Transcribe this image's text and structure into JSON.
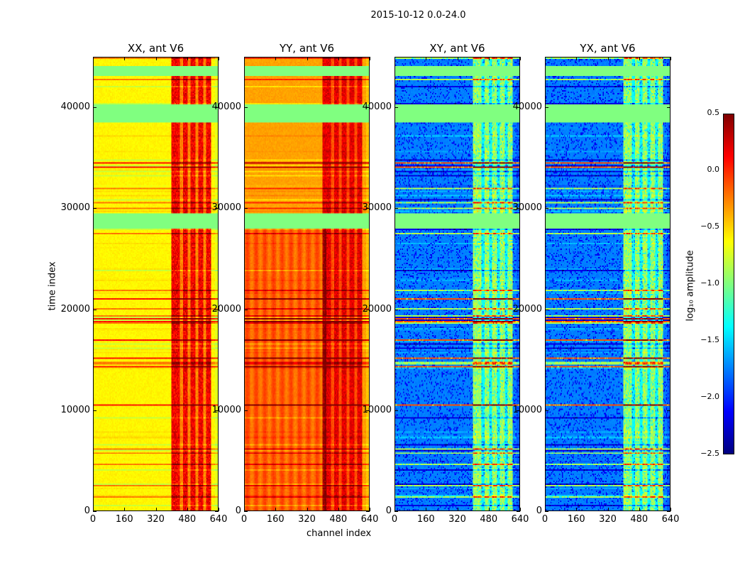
{
  "figure": {
    "suptitle": "2015-10-12 0.0-24.0"
  },
  "chart_data": {
    "type": "heatmap",
    "title": "2015-10-12 0.0-24.0",
    "xlabel": "channel index",
    "ylabel": "time index",
    "xlim": [
      0,
      640
    ],
    "ylim": [
      0,
      45000
    ],
    "xticks": [
      "0",
      "160",
      "320",
      "480",
      "640"
    ],
    "yticks": [
      "0",
      "10000",
      "20000",
      "30000",
      "40000"
    ],
    "panels": [
      {
        "title": "XX, ant V6",
        "baseline": -0.6,
        "band_level": 0.15
      },
      {
        "title": "YY, ant V6",
        "baseline": -0.35,
        "band_level": 0.2
      },
      {
        "title": "XY, ant V6",
        "baseline": -1.75,
        "band_level": -0.9
      },
      {
        "title": "YX, ant V6",
        "baseline": -1.75,
        "band_level": -0.9
      }
    ],
    "flagged_time_ranges": [
      [
        28000,
        29500
      ],
      [
        38500,
        40300
      ],
      [
        43200,
        44100
      ]
    ],
    "bright_channel_range": [
      400,
      600
    ],
    "colorbar": {
      "label": "log₁₀ amplitude",
      "colormap": "jet",
      "vmin": -2.5,
      "vmax": 0.5,
      "ticks": [
        "0.5",
        "0.0",
        "−0.5",
        "−1.0",
        "−1.5",
        "−2.0",
        "−2.5"
      ]
    }
  }
}
